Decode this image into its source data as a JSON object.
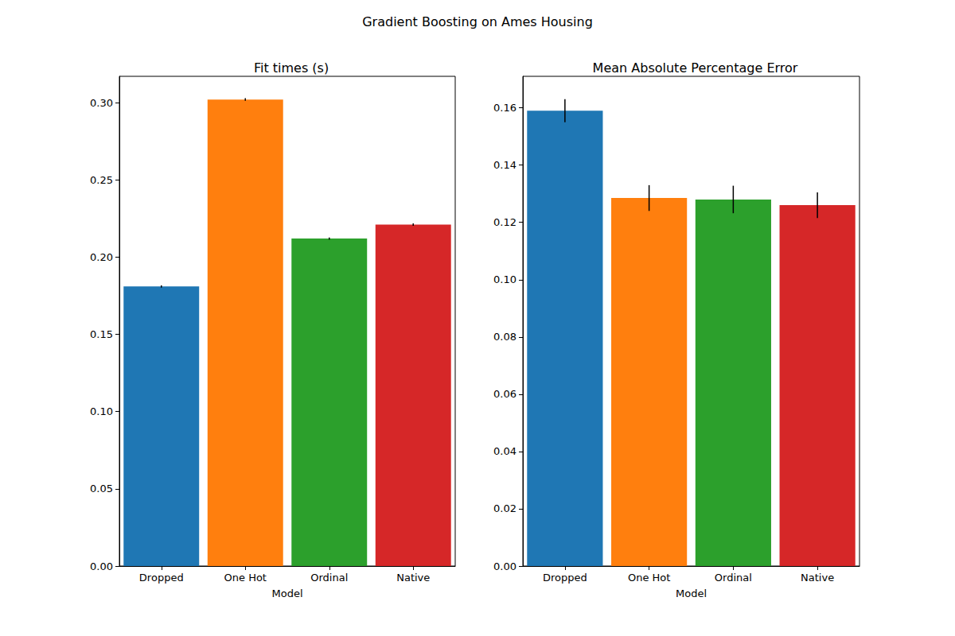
{
  "title": "Gradient Boosting on Ames Housing",
  "chart_data": [
    {
      "type": "bar",
      "title": "Fit times (s)",
      "x_label": "Model",
      "categories": [
        "Dropped",
        "One Hot",
        "Ordinal",
        "Native"
      ],
      "values": [
        0.181,
        0.302,
        0.212,
        0.221
      ],
      "errors": [
        0.0007,
        0.0008,
        0.0007,
        0.0008
      ],
      "colors": [
        "#1f77b4",
        "#ff7f0e",
        "#2ca02c",
        "#d62728"
      ],
      "ylim": [
        0,
        0.317
      ],
      "yticks": [
        {
          "value": 0,
          "label": "0.00"
        },
        {
          "value": 0.05,
          "label": "0.05"
        },
        {
          "value": 0.1,
          "label": "0.10"
        },
        {
          "value": 0.15,
          "label": "0.15"
        },
        {
          "value": 0.2,
          "label": "0.20"
        },
        {
          "value": 0.25,
          "label": "0.25"
        },
        {
          "value": 0.3,
          "label": "0.30"
        }
      ],
      "grid": false
    },
    {
      "type": "bar",
      "title": "Mean Absolute Percentage Error",
      "x_label": "Model",
      "categories": [
        "Dropped",
        "One Hot",
        "Ordinal",
        "Native"
      ],
      "values": [
        0.159,
        0.1285,
        0.128,
        0.126
      ],
      "errors": [
        0.004,
        0.0045,
        0.0048,
        0.0045
      ],
      "colors": [
        "#1f77b4",
        "#ff7f0e",
        "#2ca02c",
        "#d62728"
      ],
      "ylim": [
        0,
        0.171
      ],
      "yticks": [
        {
          "value": 0,
          "label": "0.00"
        },
        {
          "value": 0.02,
          "label": "0.02"
        },
        {
          "value": 0.04,
          "label": "0.04"
        },
        {
          "value": 0.06,
          "label": "0.06"
        },
        {
          "value": 0.08,
          "label": "0.08"
        },
        {
          "value": 0.1,
          "label": "0.10"
        },
        {
          "value": 0.12,
          "label": "0.12"
        },
        {
          "value": 0.14,
          "label": "0.14"
        },
        {
          "value": 0.16,
          "label": "0.16"
        }
      ],
      "grid": false
    }
  ]
}
